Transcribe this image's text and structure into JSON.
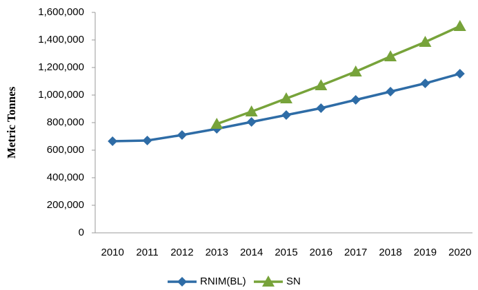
{
  "chart_data": {
    "type": "line",
    "y_label": "Metric Tonnes",
    "categories": [
      "2010",
      "2011",
      "2012",
      "2013",
      "2014",
      "2015",
      "2016",
      "2017",
      "2018",
      "2019",
      "2020"
    ],
    "series": [
      {
        "name": "RNIM(BL)",
        "color": "#2e6ca6",
        "marker": "diamond",
        "values": [
          665000,
          670000,
          710000,
          755000,
          805000,
          855000,
          905000,
          965000,
          1025000,
          1085000,
          1155000
        ]
      },
      {
        "name": "SN",
        "color": "#77a33a",
        "marker": "triangle",
        "values": [
          null,
          null,
          null,
          790000,
          880000,
          975000,
          1070000,
          1170000,
          1280000,
          1385000,
          1500000
        ]
      }
    ],
    "ylim": [
      0,
      1600000
    ],
    "yticks": [
      0,
      {
        "value": 200000,
        "label": "200,000"
      },
      {
        "value": 400000,
        "label": "400,000"
      },
      {
        "value": 600000,
        "label": "600,000"
      },
      {
        "value": 800000,
        "label": "800,000"
      },
      {
        "value": 1000000,
        "label": "1,000,000"
      },
      {
        "value": 1200000,
        "label": "1,200,000"
      },
      {
        "value": 1400000,
        "label": "1,400,000"
      },
      {
        "value": 1600000,
        "label": "1,600,000"
      }
    ],
    "grid": false,
    "legend": "bottom"
  }
}
